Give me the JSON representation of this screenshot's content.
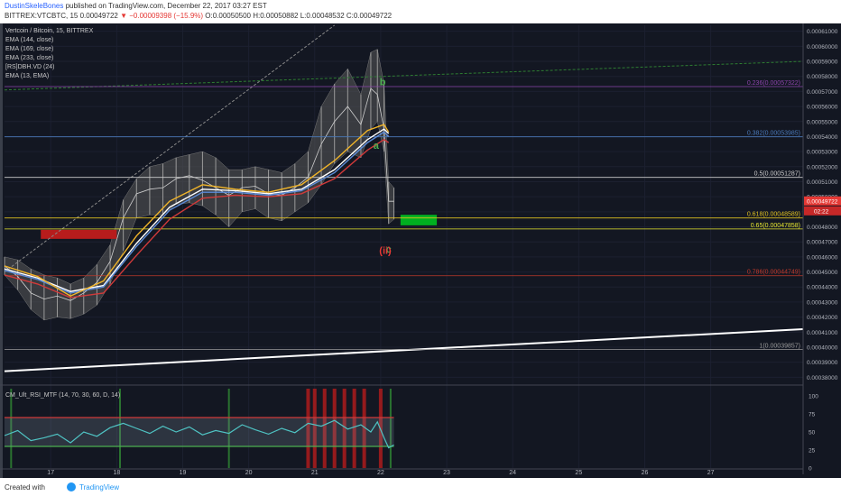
{
  "header": {
    "author": "DustinSkeleBones",
    "published": " published on TradingView.com, December 22, 2017 03:27 EST",
    "symbol_line": "BITTREX:VTCBTC, 15  0.00049722",
    "change": "▼ −0.00009398 (−15.9%)",
    "ohlc": " O:0.00050500 H:0.00050882 L:0.00048532 C:0.00049722"
  },
  "legend": [
    "Vertcoin / Bitcoin, 15, BITTREX",
    "EMA (144, close)",
    "EMA (169, close)",
    "EMA (233, close)",
    "[RS]DBH.VD (24)",
    "EMA (13, EMA)"
  ],
  "footer": {
    "created": "Created with",
    "brand": "TradingView"
  },
  "colors": {
    "background": "#131722",
    "candle": "#9a9a9a",
    "band": "#5a5a5a",
    "ema144": "#ffffff",
    "ema169": "#5b8bd8",
    "ema233": "#d03a3a",
    "ema13": "#f0b429",
    "rsi": "#4fc3c3",
    "rsi_upper": "#d03a3a",
    "rsi_lower": "#4caf50"
  },
  "chart_data": {
    "type": "line",
    "y_ticks": [
      "0.00061000",
      "0.00060000",
      "0.00059000",
      "0.00058000",
      "0.00057000",
      "0.00056000",
      "0.00055000",
      "0.00054000",
      "0.00053000",
      "0.00052000",
      "0.00051000",
      "0.00050000",
      "0.00049000",
      "0.00048000",
      "0.00047000",
      "0.00046000",
      "0.00045000",
      "0.00044000",
      "0.00043000",
      "0.00042000",
      "0.00041000",
      "0.00040000",
      "0.00039000",
      "0.00038000"
    ],
    "x_ticks": [
      "17",
      "18",
      "19",
      "20",
      "21",
      "22",
      "23",
      "24",
      "25",
      "26",
      "27"
    ],
    "ylim": [
      0.000376,
      0.000614
    ],
    "xlim": [
      16.3,
      28.4
    ],
    "price_badge": "0.00049722",
    "timer_badge": "02:22",
    "fib_levels": [
      {
        "label": "0.236(0.00057322)",
        "value": 0.00057322,
        "color": "#8e44ad"
      },
      {
        "label": "0.382(0.00053985)",
        "value": 0.00053985,
        "color": "#4a78b8"
      },
      {
        "label": "0.5(0.00051287)",
        "value": 0.00051287,
        "color": "#cccccc"
      },
      {
        "label": "0.618(0.00048589)",
        "value": 0.00048589,
        "color": "#e0c020"
      },
      {
        "label": "0.65(0.00047858)",
        "value": 0.00047858,
        "color": "#e8e830"
      },
      {
        "label": "0.786(0.00044749)",
        "value": 0.00044749,
        "color": "#c0392b"
      },
      {
        "label": "1(0.00039857)",
        "value": 0.00039857,
        "color": "#999999"
      }
    ],
    "wave_labels": [
      {
        "text": "b",
        "x": 22.03,
        "y": 0.000574,
        "color": "#4caf50"
      },
      {
        "text": "a",
        "x": 21.93,
        "y": 0.000532,
        "color": "#4caf50"
      },
      {
        "text": "c",
        "x": 22.12,
        "y": 0.000463,
        "color": "#4caf50"
      },
      {
        "text": "(ii)",
        "x": 22.07,
        "y": 0.000462,
        "color": "#e53935"
      }
    ],
    "price": {
      "x": [
        16.3,
        16.5,
        16.7,
        16.9,
        17.1,
        17.3,
        17.5,
        17.7,
        17.9,
        18.1,
        18.3,
        18.5,
        18.7,
        18.9,
        19.1,
        19.3,
        19.5,
        19.7,
        19.9,
        20.1,
        20.3,
        20.5,
        20.7,
        20.9,
        21.1,
        21.3,
        21.5,
        21.7,
        21.85,
        21.95,
        22.05,
        22.12,
        22.2
      ],
      "high": [
        0.00046,
        0.000458,
        0.000452,
        0.000448,
        0.000446,
        0.000442,
        0.000446,
        0.000455,
        0.000468,
        0.000498,
        0.000512,
        0.00052,
        0.000522,
        0.000526,
        0.000528,
        0.00053,
        0.000526,
        0.000518,
        0.000518,
        0.00052,
        0.000518,
        0.000516,
        0.000522,
        0.00053,
        0.00056,
        0.000575,
        0.000585,
        0.000568,
        0.000596,
        0.000598,
        0.000575,
        0.00051,
        0.000506
      ],
      "low": [
        0.000448,
        0.000438,
        0.000425,
        0.000418,
        0.00042,
        0.000419,
        0.000422,
        0.000428,
        0.000442,
        0.000464,
        0.000486,
        0.000488,
        0.000488,
        0.000495,
        0.000496,
        0.000494,
        0.000488,
        0.00048,
        0.00049,
        0.000492,
        0.000486,
        0.000484,
        0.00049,
        0.000496,
        0.000508,
        0.000522,
        0.00053,
        0.000526,
        0.000545,
        0.00055,
        0.00053,
        0.000482,
        0.000485
      ],
      "close": [
        0.000454,
        0.000447,
        0.000436,
        0.000432,
        0.000434,
        0.000431,
        0.000436,
        0.000443,
        0.000457,
        0.000486,
        0.000502,
        0.000505,
        0.000506,
        0.000512,
        0.000514,
        0.000511,
        0.000506,
        0.000501,
        0.000506,
        0.000507,
        0.000502,
        0.000501,
        0.000506,
        0.000513,
        0.000535,
        0.00055,
        0.00056,
        0.000548,
        0.000572,
        0.000568,
        0.000545,
        0.000497,
        0.000497
      ]
    },
    "ema": [
      {
        "name": "EMA (144, close)",
        "color": "#ffffff",
        "x": [
          16.3,
          16.8,
          17.3,
          17.8,
          18.3,
          18.8,
          19.3,
          19.8,
          20.3,
          20.8,
          21.3,
          21.8,
          22.05,
          22.12
        ],
        "y": [
          0.000452,
          0.000446,
          0.000437,
          0.000441,
          0.000469,
          0.000493,
          0.000505,
          0.000504,
          0.000502,
          0.000505,
          0.000518,
          0.000538,
          0.000545,
          0.000542
        ]
      },
      {
        "name": "EMA (169, close)",
        "color": "#5b8bd8",
        "x": [
          16.3,
          16.8,
          17.3,
          17.8,
          18.3,
          18.8,
          19.3,
          19.8,
          20.3,
          20.8,
          21.3,
          21.8,
          22.05,
          22.12
        ],
        "y": [
          0.000451,
          0.000445,
          0.000436,
          0.00044,
          0.000467,
          0.000491,
          0.000503,
          0.000503,
          0.000501,
          0.000504,
          0.000516,
          0.000536,
          0.000543,
          0.00054
        ]
      },
      {
        "name": "EMA (233, close)",
        "color": "#d03a3a",
        "x": [
          16.3,
          16.8,
          17.3,
          17.8,
          18.3,
          18.8,
          19.3,
          19.8,
          20.3,
          20.8,
          21.3,
          21.8,
          22.05,
          22.12
        ],
        "y": [
          0.000448,
          0.000442,
          0.000433,
          0.000436,
          0.000461,
          0.000485,
          0.000499,
          0.000501,
          0.0005,
          0.000502,
          0.000512,
          0.000531,
          0.000538,
          0.000536
        ]
      },
      {
        "name": "EMA (13, EMA)",
        "color": "#f0b429",
        "x": [
          16.3,
          16.8,
          17.3,
          17.8,
          18.3,
          18.8,
          19.3,
          19.8,
          20.3,
          20.8,
          21.3,
          21.8,
          22.05,
          22.12
        ],
        "y": [
          0.000454,
          0.000447,
          0.000434,
          0.000444,
          0.000474,
          0.000497,
          0.000508,
          0.000505,
          0.000503,
          0.000508,
          0.000524,
          0.000544,
          0.000548,
          0.000543
        ]
      }
    ],
    "supply_zone": {
      "x": [
        16.85,
        18.0
      ],
      "y": [
        0.000472,
        0.000478
      ],
      "color": "#b71c1c"
    },
    "target_zone": {
      "x": [
        22.3,
        22.85
      ],
      "y": [
        0.000481,
        0.000488
      ],
      "color": "#00b020"
    },
    "trendlines": [
      {
        "x": [
          16.3,
          28.4
        ],
        "y": [
          0.000384,
          0.000412
        ],
        "color": "#ffffff",
        "width": 2,
        "dash": ""
      },
      {
        "x": [
          16.3,
          28.4
        ],
        "y": [
          0.000571,
          0.00059
        ],
        "color": "#2e7d32",
        "width": 1,
        "dash": "3,2"
      },
      {
        "x": [
          16.3,
          21.3
        ],
        "y": [
          0.00045,
          0.000614
        ],
        "color": "#888888",
        "width": 1,
        "dash": "3,2"
      }
    ],
    "rsi": {
      "name": "CM_Ult_RSI_MTF (14, 70, 30, 60, D, 14)",
      "y_ticks": [
        "100",
        "75",
        "50",
        "25",
        "0"
      ],
      "upper": 70,
      "lower": 30,
      "x": [
        16.3,
        16.5,
        16.7,
        16.9,
        17.1,
        17.3,
        17.5,
        17.7,
        17.9,
        18.1,
        18.3,
        18.5,
        18.7,
        18.9,
        19.1,
        19.3,
        19.5,
        19.7,
        19.9,
        20.1,
        20.3,
        20.5,
        20.7,
        20.9,
        21.1,
        21.3,
        21.5,
        21.7,
        21.85,
        21.95,
        22.05,
        22.12,
        22.2
      ],
      "y": [
        45,
        52,
        38,
        42,
        47,
        35,
        50,
        44,
        56,
        62,
        55,
        48,
        58,
        50,
        57,
        46,
        52,
        48,
        60,
        53,
        47,
        55,
        49,
        62,
        58,
        66,
        54,
        60,
        50,
        64,
        42,
        28,
        32
      ],
      "red_bars": [
        20.9,
        21.0,
        21.15,
        21.3,
        21.45,
        21.6,
        21.75,
        22.0
      ],
      "green_bars": [
        16.4,
        18.05,
        19.7,
        22.15
      ]
    }
  }
}
